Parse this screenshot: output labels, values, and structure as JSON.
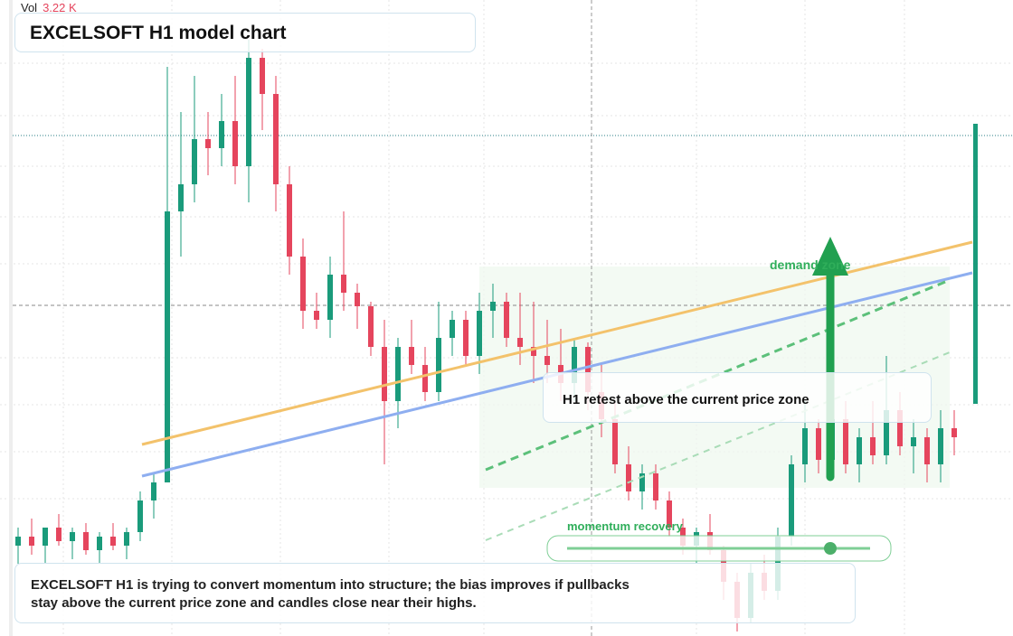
{
  "chart_data": {
    "type": "candlestick",
    "title": "EXCELSOFT H1 model chart",
    "volume_label": "Vol",
    "volume_value": "3.22 K",
    "annotations": {
      "zone": "demand zone",
      "retest": "H1 retest above the current price zone",
      "momentum": "momentum recovery"
    },
    "note": "EXCELSOFT H1 is trying to convert momentum into structure; the bias improves if pullbacks stay above the current price zone and candles close near their highs.",
    "up_color": "#1a9b7b",
    "down_color": "#e5455d",
    "ylim": [
      0,
      70.4
    ],
    "open": [
      10,
      11,
      10,
      12,
      10.5,
      11.5,
      9.5,
      11,
      10,
      11.5,
      15,
      17,
      47,
      50,
      55,
      54,
      57,
      52,
      64,
      60,
      50,
      42,
      36,
      35,
      40,
      38,
      36.5,
      32,
      26,
      32,
      30,
      27,
      33,
      35,
      31,
      36,
      37,
      33,
      32,
      31,
      30,
      28,
      32,
      27,
      24,
      19,
      16,
      18,
      15,
      12,
      10,
      11.5,
      9.5,
      6,
      2,
      7,
      5,
      11,
      19,
      23,
      19.5,
      24,
      19,
      22,
      20,
      25,
      21,
      22,
      19,
      23
    ],
    "high": [
      12,
      13,
      12,
      13.5,
      12,
      12.5,
      11.5,
      12.5,
      12,
      16,
      18,
      63,
      58,
      62,
      58,
      60,
      62,
      66,
      65,
      62,
      52,
      44,
      38,
      42,
      47,
      39,
      37,
      35,
      33,
      35,
      32,
      37,
      36,
      36,
      38,
      39,
      38,
      38,
      37,
      35,
      34,
      33,
      32.5,
      30,
      26,
      21,
      19,
      19,
      16,
      13,
      12,
      13.5,
      10,
      7,
      8,
      9,
      12,
      20,
      26,
      24,
      25,
      26,
      23,
      26,
      31,
      27,
      24,
      23,
      25,
      25
    ],
    "low": [
      8,
      9,
      8,
      10,
      8.5,
      9,
      8,
      9.5,
      8.5,
      10.5,
      13,
      17,
      42,
      48,
      51,
      52,
      50,
      48,
      56,
      47,
      40,
      34,
      34,
      33,
      36,
      34,
      31,
      19,
      23,
      29,
      26,
      26,
      31,
      30,
      29,
      33,
      32,
      30,
      28,
      28,
      26,
      26,
      25,
      22,
      18,
      15,
      14,
      14,
      11,
      9,
      8,
      9,
      4,
      0.5,
      1.5,
      4,
      4,
      10,
      17,
      18,
      18,
      18,
      17,
      19,
      19,
      20,
      18,
      17,
      17,
      20
    ],
    "close": [
      11,
      10,
      12,
      10.5,
      11.5,
      9.5,
      11,
      10,
      11.5,
      15,
      17,
      47,
      50,
      55,
      54,
      57,
      52,
      64,
      60,
      50,
      42,
      36,
      35,
      40,
      38,
      36.5,
      32,
      26,
      32,
      30,
      27,
      33,
      35,
      31,
      36,
      37,
      33,
      32,
      31,
      30,
      28,
      32,
      27,
      24,
      19,
      16,
      18,
      15,
      12,
      10,
      11.5,
      9.5,
      6,
      2,
      7,
      5,
      11,
      19,
      23,
      19.5,
      24,
      19,
      22,
      20,
      25,
      21,
      22,
      19,
      23,
      22
    ]
  }
}
